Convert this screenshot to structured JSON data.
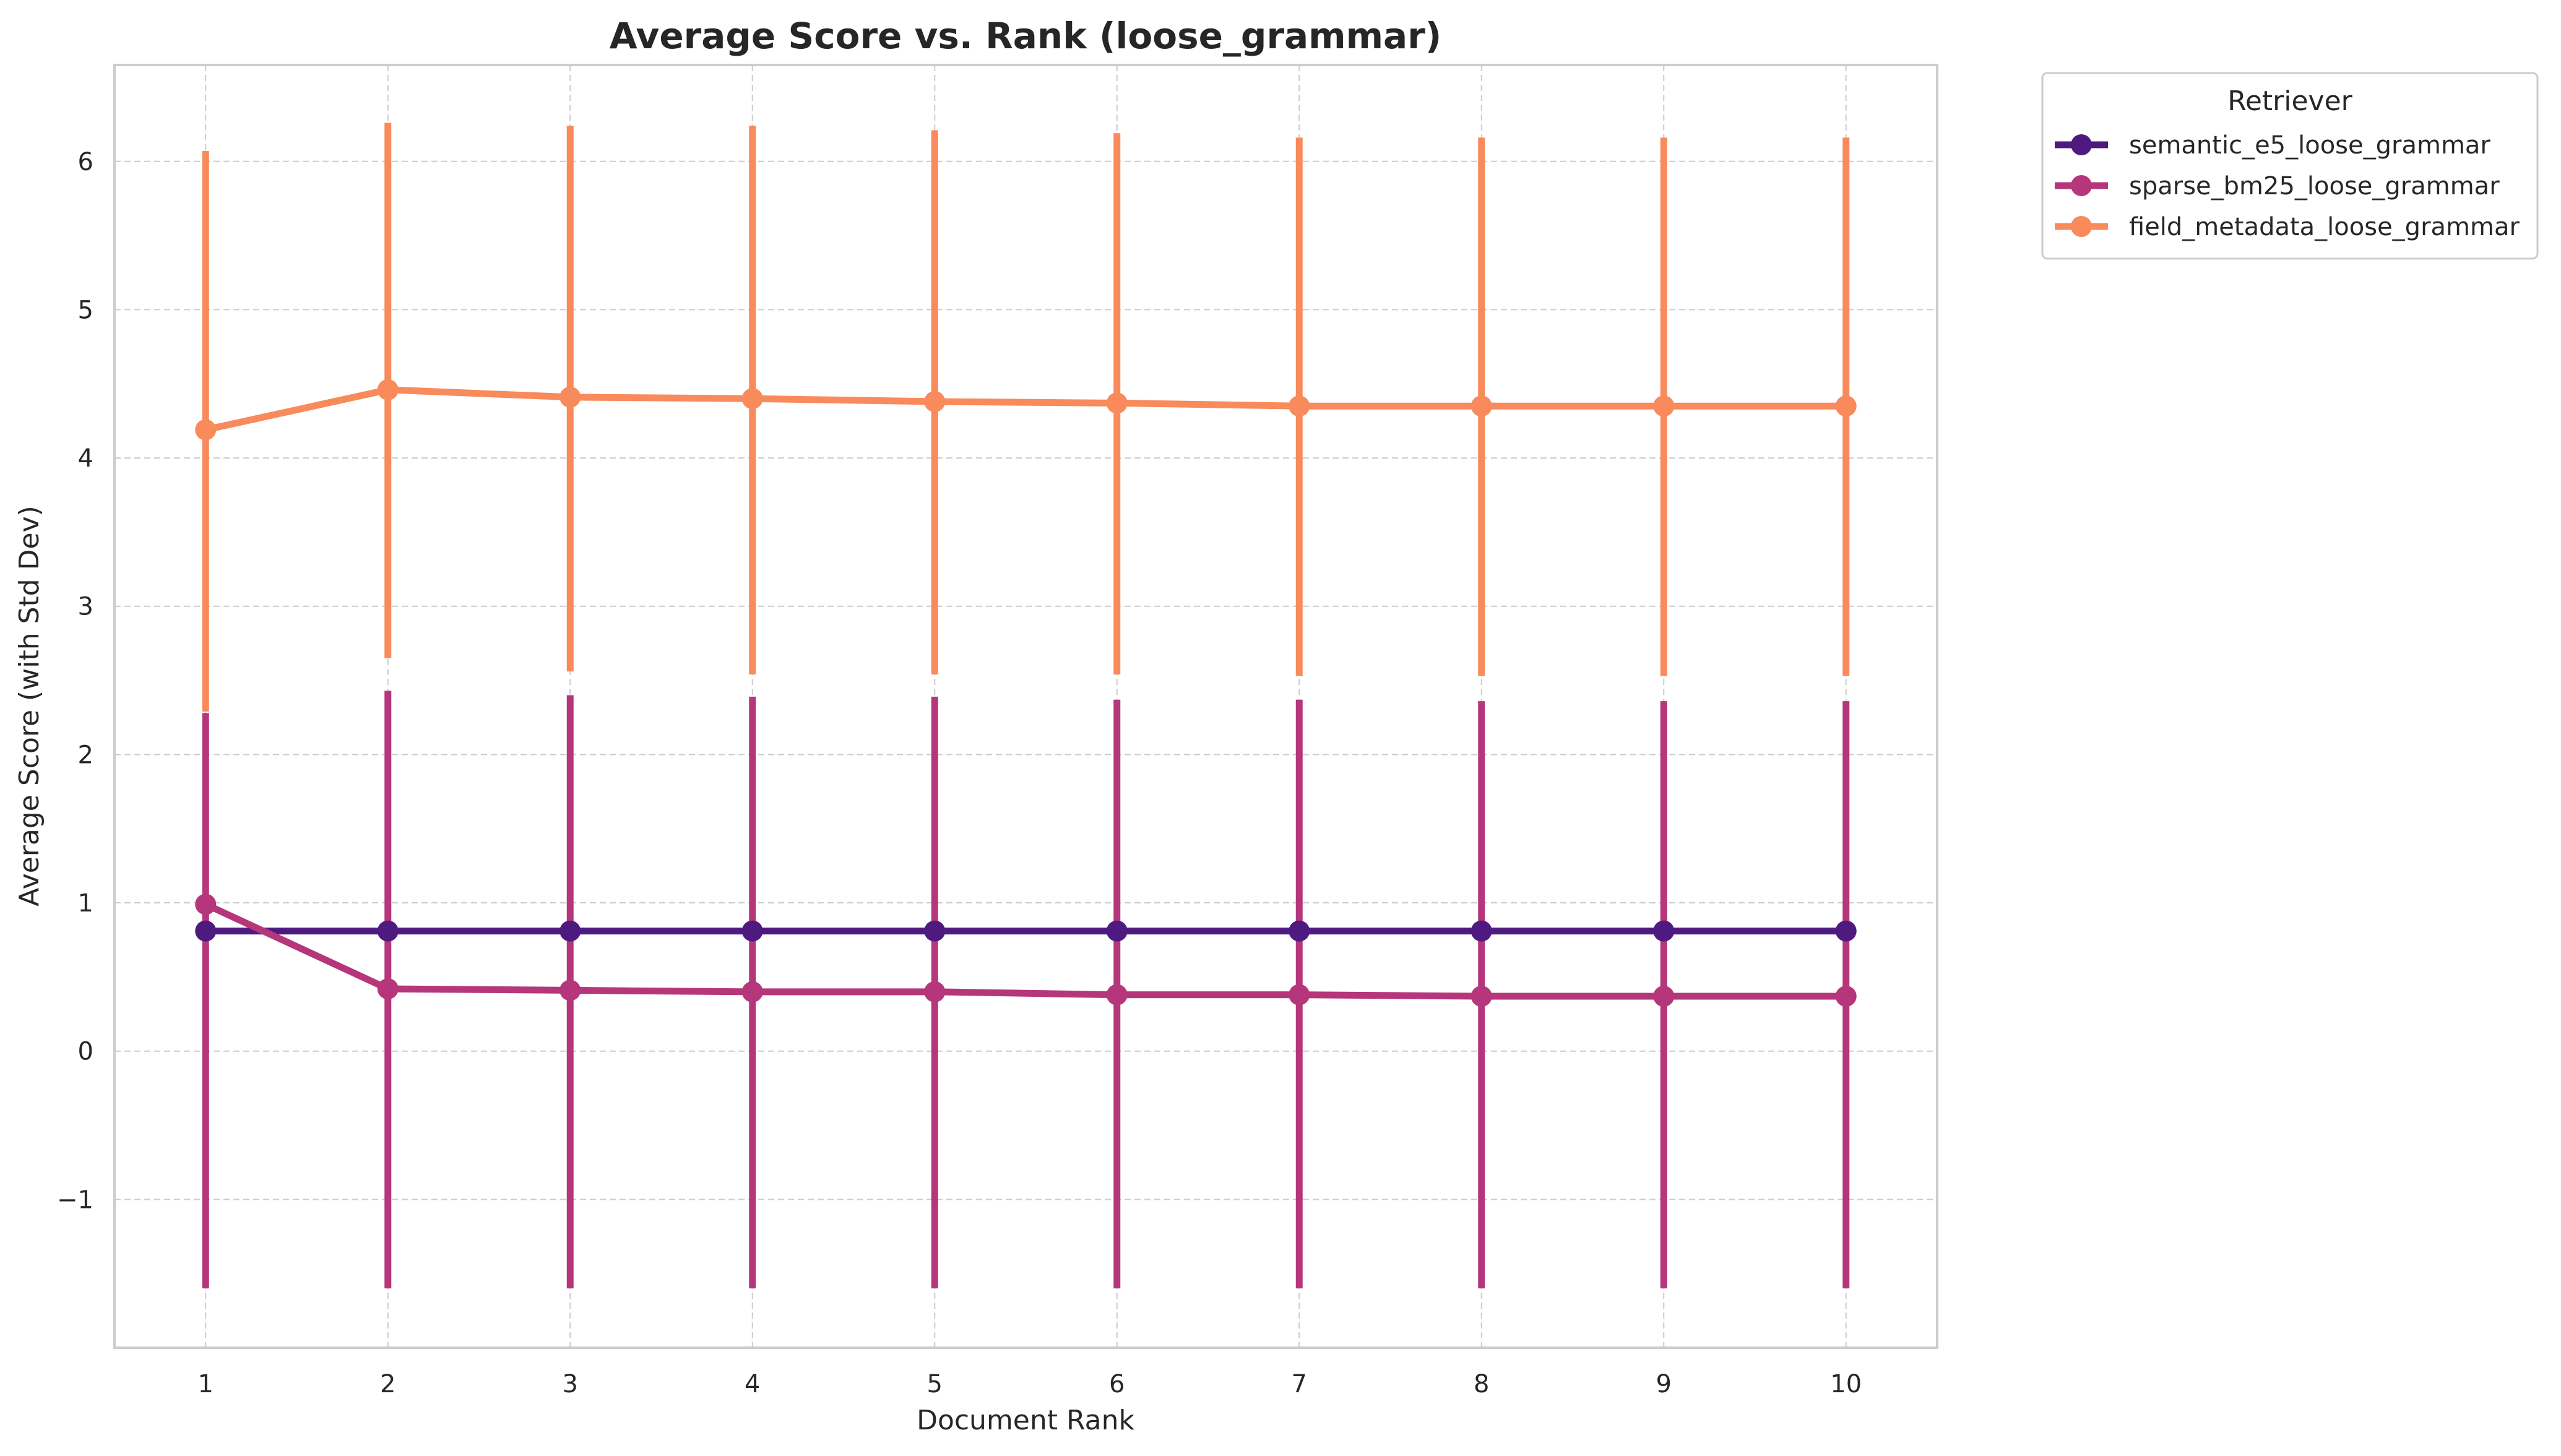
{
  "chart_data": {
    "type": "line",
    "title": "Average Score vs. Rank (loose_grammar)",
    "xlabel": "Document Rank",
    "ylabel": "Average Score (with Std Dev)",
    "x": [
      1,
      2,
      3,
      4,
      5,
      6,
      7,
      8,
      9,
      10
    ],
    "xticks": [
      "1",
      "2",
      "3",
      "4",
      "5",
      "6",
      "7",
      "8",
      "9",
      "10"
    ],
    "yticks": [
      -1,
      0,
      1,
      2,
      3,
      4,
      5,
      6
    ],
    "ytick_labels": [
      "−1",
      "0",
      "1",
      "2",
      "3",
      "4",
      "5",
      "6"
    ],
    "xlim": [
      0.5,
      10.5
    ],
    "ylim": [
      -2.0,
      6.65
    ],
    "grid": true,
    "error_bars": "std_dev",
    "legend": {
      "title": "Retriever",
      "placement": "outside-top-right"
    },
    "series": [
      {
        "name": "semantic_e5_loose_grammar",
        "color": "#4e1a80",
        "values": [
          0.81,
          0.81,
          0.81,
          0.81,
          0.81,
          0.81,
          0.81,
          0.81,
          0.81,
          0.81
        ],
        "std": [
          0.0,
          0.0,
          0.0,
          0.0,
          0.0,
          0.0,
          0.0,
          0.0,
          0.0,
          0.0
        ]
      },
      {
        "name": "sparse_bm25_loose_grammar",
        "color": "#b5367a",
        "values": [
          0.99,
          0.42,
          0.41,
          0.4,
          0.4,
          0.38,
          0.38,
          0.37,
          0.37,
          0.37
        ],
        "err_low": [
          -1.6,
          -1.6,
          -1.6,
          -1.6,
          -1.6,
          -1.6,
          -1.6,
          -1.6,
          -1.6,
          -1.6
        ],
        "err_high": [
          2.28,
          2.43,
          2.4,
          2.39,
          2.39,
          2.37,
          2.37,
          2.36,
          2.36,
          2.36
        ]
      },
      {
        "name": "field_metadata_loose_grammar",
        "color": "#f88a5c",
        "values": [
          4.19,
          4.46,
          4.41,
          4.4,
          4.38,
          4.37,
          4.35,
          4.35,
          4.35,
          4.35
        ],
        "err_low": [
          2.29,
          2.65,
          2.56,
          2.54,
          2.54,
          2.54,
          2.53,
          2.53,
          2.53,
          2.53
        ],
        "err_high": [
          6.07,
          6.26,
          6.24,
          6.24,
          6.21,
          6.19,
          6.16,
          6.16,
          6.16,
          6.16
        ]
      }
    ]
  }
}
